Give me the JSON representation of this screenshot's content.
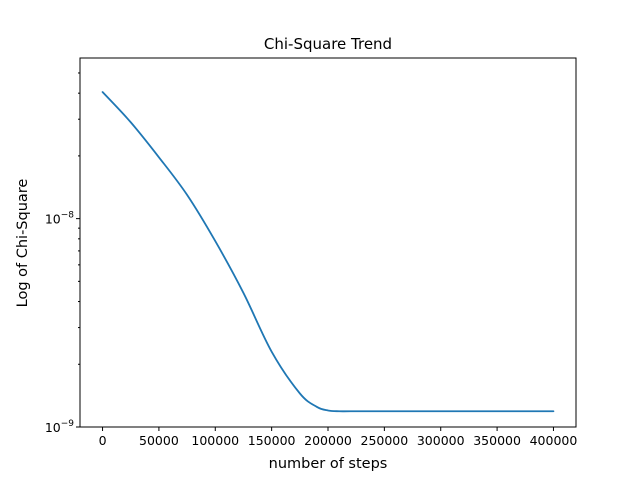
{
  "chart_data": {
    "type": "line",
    "title": "Chi-Square Trend",
    "xlabel": "number of steps",
    "ylabel": "Log of Chi-Square",
    "yscale": "log",
    "grid": false,
    "xlim": [
      -20000,
      420000
    ],
    "ylim": [
      1e-09,
      5.9e-08
    ],
    "x_ticks": [
      0,
      50000,
      100000,
      150000,
      200000,
      250000,
      300000,
      350000,
      400000
    ],
    "x_tick_labels": [
      "0",
      "50000",
      "100000",
      "150000",
      "200000",
      "250000",
      "300000",
      "350000",
      "400000"
    ],
    "y_ticks": [
      {
        "value": 1e-08,
        "base": "10",
        "exp": "−8"
      },
      {
        "value": 1e-09,
        "base": "10",
        "exp": "−9"
      }
    ],
    "series": [
      {
        "color": "#1f77b4",
        "x": [
          0,
          25000,
          50000,
          75000,
          100000,
          125000,
          150000,
          175000,
          190000,
          200000,
          210000,
          220000,
          250000,
          300000,
          350000,
          400000
        ],
        "y": [
          4.05e-08,
          2.9e-08,
          1.97e-08,
          1.3e-08,
          7.8e-09,
          4.4e-09,
          2.3e-09,
          1.45e-09,
          1.25e-09,
          1.2e-09,
          1.19e-09,
          1.19e-09,
          1.19e-09,
          1.19e-09,
          1.19e-09,
          1.19e-09
        ]
      }
    ]
  }
}
